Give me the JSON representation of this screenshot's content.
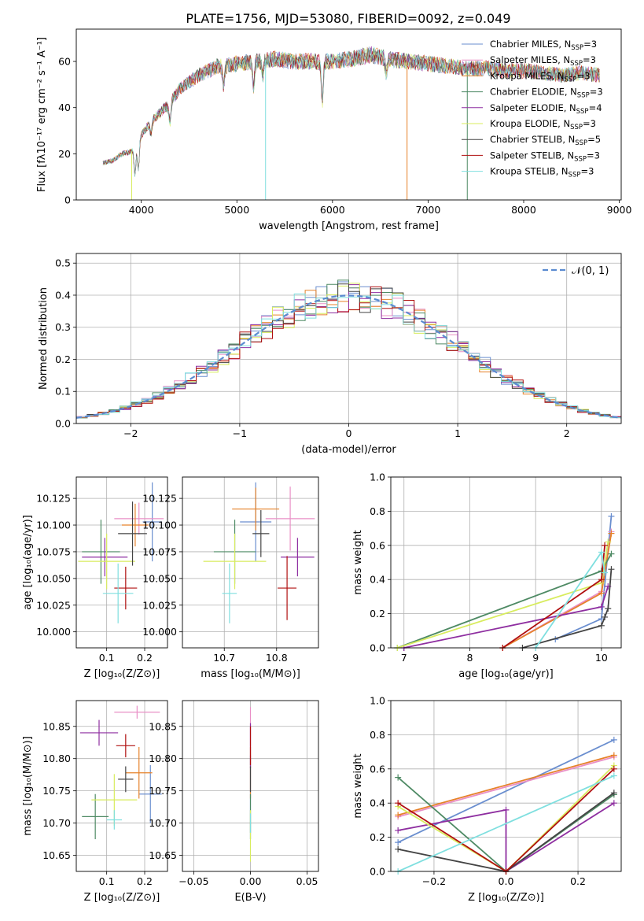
{
  "figure_title": "PLATE=1756, MJD=53080, FIBERID=0092, z=0.049",
  "legend_spectrum": [
    {
      "label": "Chabrier MILES, N",
      "sub": "SSP",
      "suffix": "=3",
      "color": "#6a8ecf"
    },
    {
      "label": "Salpeter MILES, N",
      "sub": "SSP",
      "suffix": "=3",
      "color": "#e98fc6"
    },
    {
      "label": "Kroupa MILES, N",
      "sub": "SSP",
      "suffix": "=3",
      "color": "#e6822a"
    },
    {
      "label": "Chabrier ELODIE, N",
      "sub": "SSP",
      "suffix": "=3",
      "color": "#4e8a64"
    },
    {
      "label": "Salpeter ELODIE, N",
      "sub": "SSP",
      "suffix": "=4",
      "color": "#8e2ea0"
    },
    {
      "label": "Kroupa ELODIE, N",
      "sub": "SSP",
      "suffix": "=3",
      "color": "#d8ec5e"
    },
    {
      "label": "Chabrier STELIB, N",
      "sub": "SSP",
      "suffix": "=5",
      "color": "#444444"
    },
    {
      "label": "Salpeter STELIB, N",
      "sub": "SSP",
      "suffix": "=3",
      "color": "#b01010"
    },
    {
      "label": "Kroupa STELIB, N",
      "sub": "SSP",
      "suffix": "=3",
      "color": "#7fdfdf"
    }
  ],
  "colors": [
    "#6a8ecf",
    "#e98fc6",
    "#e6822a",
    "#4e8a64",
    "#8e2ea0",
    "#d8ec5e",
    "#444444",
    "#b01010",
    "#7fdfdf"
  ],
  "chart_data": [
    {
      "id": "spectrum",
      "type": "line",
      "title": "PLATE=1756, MJD=53080, FIBERID=0092, z=0.049",
      "xlabel": "wavelength [Angstrom, rest frame]",
      "ylabel": "Flux [fλ10⁻¹⁷ erg cm⁻² s⁻¹ A⁻¹]",
      "xlim": [
        3320,
        9020
      ],
      "ylim": [
        0,
        74
      ],
      "xticks": [
        4000,
        5000,
        6000,
        7000,
        8000,
        9000
      ],
      "yticks": [
        0,
        20,
        40,
        60
      ],
      "xtick_labels": [
        "4000",
        "5000",
        "6000",
        "7000",
        "8000",
        "9000"
      ],
      "ytick_labels": [
        "0",
        "20",
        "40",
        "60"
      ],
      "continuum": {
        "x": [
          3600,
          3700,
          3800,
          3900,
          4000,
          4100,
          4200,
          4300,
          4400,
          4500,
          4600,
          4700,
          4800,
          4900,
          5000,
          5200,
          5400,
          5600,
          5800,
          6000,
          6200,
          6400,
          6600,
          6800,
          7000,
          7200,
          7400,
          7600,
          7800,
          8000,
          8200,
          8400,
          8600,
          8800
        ],
        "y": [
          16,
          17,
          20,
          21,
          28,
          34,
          38,
          42,
          48,
          51,
          54,
          56,
          58,
          58,
          59,
          60,
          61,
          60,
          60,
          60,
          61,
          63,
          61,
          60,
          59,
          58,
          57,
          57,
          56,
          56,
          55,
          54,
          55,
          54
        ]
      }
    },
    {
      "id": "residuals",
      "type": "histogram",
      "xlabel": "(data-model)/error",
      "ylabel": "Normed distribution",
      "xlim": [
        -2.5,
        2.5
      ],
      "ylim": [
        0,
        0.53
      ],
      "xticks": [
        -2,
        -1,
        0,
        1,
        2
      ],
      "yticks": [
        0.0,
        0.1,
        0.2,
        0.3,
        0.4,
        0.5
      ],
      "xtick_labels": [
        "−2",
        "−1",
        "0",
        "1",
        "2"
      ],
      "ytick_labels": [
        "0.0",
        "0.1",
        "0.2",
        "0.3",
        "0.4",
        "0.5"
      ],
      "legend": "𝒩(0, 1)",
      "bin_width": 0.1
    },
    {
      "id": "age-vs-metallicity",
      "type": "errorbar",
      "xlabel": "Z [log₁₀(Z/Z⊙)]",
      "ylabel": "age  [log₁₀(age/yr)]",
      "xlim": [
        0.02,
        0.26
      ],
      "ylim": [
        9.985,
        10.145
      ],
      "xticks": [
        0.1,
        0.2
      ],
      "yticks": [
        10.0,
        10.025,
        10.05,
        10.075,
        10.1,
        10.125
      ],
      "xtick_labels": [
        "0.1",
        "0.2"
      ],
      "ytick_labels": [
        "10.000",
        "10.025",
        "10.050",
        "10.075",
        "10.100",
        "10.125"
      ],
      "points": [
        {
          "x": 0.22,
          "xerr": 0.025,
          "y": 10.103,
          "yerr": 0.037
        },
        {
          "x": 0.185,
          "xerr": 0.065,
          "y": 10.106,
          "yerr": 0.015
        },
        {
          "x": 0.175,
          "xerr": 0.035,
          "y": 10.1,
          "yerr": 0.02
        },
        {
          "x": 0.085,
          "xerr": 0.05,
          "y": 10.075,
          "yerr": 0.03
        },
        {
          "x": 0.095,
          "xerr": 0.06,
          "y": 10.07,
          "yerr": 0.018
        },
        {
          "x": 0.1,
          "xerr": 0.075,
          "y": 10.066,
          "yerr": 0.026
        },
        {
          "x": 0.168,
          "xerr": 0.038,
          "y": 10.092,
          "yerr": 0.03
        },
        {
          "x": 0.15,
          "xerr": 0.03,
          "y": 10.041,
          "yerr": 0.02
        },
        {
          "x": 0.13,
          "xerr": 0.04,
          "y": 10.036,
          "yerr": 0.028
        }
      ]
    },
    {
      "id": "age-vs-mass",
      "type": "errorbar",
      "xlabel": "mass [log₁₀(M/M⊙)]",
      "ylabel": "",
      "xlim": [
        10.62,
        10.88
      ],
      "ylim": [
        9.985,
        10.145
      ],
      "xticks": [
        10.7,
        10.8
      ],
      "yticks": [
        10.0,
        10.025,
        10.05,
        10.075,
        10.1,
        10.125
      ],
      "xtick_labels": [
        "10.7",
        "10.8"
      ],
      "ytick_labels": [
        "10.000",
        "10.025",
        "10.050",
        "10.075",
        "10.100",
        "10.125"
      ],
      "points": [
        {
          "x": 10.76,
          "xerr": 0.03,
          "y": 10.103,
          "yerr": 0.037
        },
        {
          "x": 10.826,
          "xerr": 0.047,
          "y": 10.106,
          "yerr": 0.03
        },
        {
          "x": 10.76,
          "xerr": 0.045,
          "y": 10.115,
          "yerr": 0.02
        },
        {
          "x": 10.72,
          "xerr": 0.04,
          "y": 10.075,
          "yerr": 0.03
        },
        {
          "x": 10.84,
          "xerr": 0.032,
          "y": 10.07,
          "yerr": 0.018
        },
        {
          "x": 10.72,
          "xerr": 0.06,
          "y": 10.066,
          "yerr": 0.026
        },
        {
          "x": 10.77,
          "xerr": 0.016,
          "y": 10.092,
          "yerr": 0.022
        },
        {
          "x": 10.82,
          "xerr": 0.018,
          "y": 10.041,
          "yerr": 0.03
        },
        {
          "x": 10.71,
          "xerr": 0.014,
          "y": 10.036,
          "yerr": 0.028
        }
      ]
    },
    {
      "id": "mass-weight-vs-age",
      "type": "line",
      "xlabel": "age  [log₁₀(age/yr)]",
      "ylabel": "mass weight",
      "xlim": [
        6.8,
        10.3
      ],
      "ylim": [
        0.0,
        1.0
      ],
      "xticks": [
        7,
        8,
        9,
        10
      ],
      "yticks": [
        0.0,
        0.2,
        0.4,
        0.6,
        0.8,
        1.0
      ],
      "xtick_labels": [
        "7",
        "8",
        "9",
        "10"
      ],
      "ytick_labels": [
        "0.0",
        "0.2",
        "0.4",
        "0.6",
        "0.8",
        "1.0"
      ],
      "series": [
        {
          "x": [
            9.3,
            10.0,
            10.15
          ],
          "y": [
            0.05,
            0.17,
            0.77
          ]
        },
        {
          "x": [
            8.5,
            10.0,
            10.15
          ],
          "y": [
            0.0,
            0.33,
            0.68
          ]
        },
        {
          "x": [
            8.5,
            10.0,
            10.15
          ],
          "y": [
            0.0,
            0.32,
            0.67
          ]
        },
        {
          "x": [
            6.9,
            10.0,
            10.15
          ],
          "y": [
            0.0,
            0.45,
            0.55
          ]
        },
        {
          "x": [
            7.0,
            10.0,
            10.1
          ],
          "y": [
            0.0,
            0.24,
            0.36
          ]
        },
        {
          "x": [
            6.9,
            10.0,
            10.1
          ],
          "y": [
            0.0,
            0.38,
            0.62
          ]
        },
        {
          "x": [
            8.8,
            10.0,
            10.05,
            10.1,
            10.15
          ],
          "y": [
            0.0,
            0.13,
            0.18,
            0.23,
            0.46
          ]
        },
        {
          "x": [
            8.5,
            10.0,
            10.05
          ],
          "y": [
            0.0,
            0.4,
            0.6
          ]
        },
        {
          "x": [
            9.0,
            10.0,
            10.05
          ],
          "y": [
            0.0,
            0.56,
            0.44
          ]
        }
      ]
    },
    {
      "id": "mass-vs-metallicity",
      "type": "errorbar",
      "xlabel": "Z [log₁₀(Z/Z⊙)]",
      "ylabel": "mass [log₁₀(M/M⊙)]",
      "xlim": [
        0.02,
        0.26
      ],
      "ylim": [
        10.625,
        10.89
      ],
      "xticks": [
        0.1,
        0.2
      ],
      "yticks": [
        10.65,
        10.7,
        10.75,
        10.8,
        10.85
      ],
      "xtick_labels": [
        "0.1",
        "0.2"
      ],
      "ytick_labels": [
        "10.65",
        "10.70",
        "10.75",
        "10.80",
        "10.85"
      ],
      "points": [
        {
          "x": 0.215,
          "xerr": 0.03,
          "y": 10.745,
          "yerr": 0.045
        },
        {
          "x": 0.18,
          "xerr": 0.06,
          "y": 10.872,
          "yerr": 0.01
        },
        {
          "x": 0.185,
          "xerr": 0.035,
          "y": 10.778,
          "yerr": 0.04
        },
        {
          "x": 0.07,
          "xerr": 0.035,
          "y": 10.71,
          "yerr": 0.035
        },
        {
          "x": 0.08,
          "xerr": 0.05,
          "y": 10.84,
          "yerr": 0.02
        },
        {
          "x": 0.12,
          "xerr": 0.06,
          "y": 10.736,
          "yerr": 0.04
        },
        {
          "x": 0.15,
          "xerr": 0.02,
          "y": 10.768,
          "yerr": 0.02
        },
        {
          "x": 0.15,
          "xerr": 0.025,
          "y": 10.82,
          "yerr": 0.018
        },
        {
          "x": 0.12,
          "xerr": 0.02,
          "y": 10.705,
          "yerr": 0.015
        }
      ]
    },
    {
      "id": "mass-vs-extinction",
      "type": "errorbar",
      "xlabel": "E(B-V)",
      "ylabel": "",
      "xlim": [
        -0.06,
        0.06
      ],
      "ylim": [
        10.625,
        10.89
      ],
      "xticks": [
        -0.05,
        0.0,
        0.05
      ],
      "yticks": [
        10.65,
        10.7,
        10.75,
        10.8,
        10.85
      ],
      "xtick_labels": [
        "−0.05",
        "0.00",
        "0.05"
      ],
      "ytick_labels": [
        "10.65",
        "10.70",
        "10.75",
        "10.80",
        "10.85"
      ],
      "points": [
        {
          "x": 0.0,
          "xerr": 0.0,
          "y": 10.745,
          "yerr": 0.06
        },
        {
          "x": 0.0,
          "xerr": 0.0,
          "y": 10.85,
          "yerr": 0.03
        },
        {
          "x": 0.0,
          "xerr": 0.0,
          "y": 10.778,
          "yerr": 0.04
        },
        {
          "x": 0.0,
          "xerr": 0.0,
          "y": 10.71,
          "yerr": 0.035
        },
        {
          "x": 0.0,
          "xerr": 0.0,
          "y": 10.82,
          "yerr": 0.035
        },
        {
          "x": 0.0,
          "xerr": 0.0,
          "y": 10.68,
          "yerr": 0.04
        },
        {
          "x": 0.0,
          "xerr": 0.0,
          "y": 10.768,
          "yerr": 0.02
        },
        {
          "x": 0.0,
          "xerr": 0.0,
          "y": 10.82,
          "yerr": 0.03
        },
        {
          "x": 0.0,
          "xerr": 0.0,
          "y": 10.7,
          "yerr": 0.015
        }
      ]
    },
    {
      "id": "mass-weight-vs-metallicity",
      "type": "line",
      "xlabel": "Z [log₁₀(Z/Z⊙)]",
      "ylabel": "mass weight",
      "xlim": [
        -0.32,
        0.32
      ],
      "ylim": [
        0.0,
        1.0
      ],
      "xticks": [
        -0.2,
        0.0,
        0.2
      ],
      "yticks": [
        0.0,
        0.2,
        0.4,
        0.6,
        0.8,
        1.0
      ],
      "xtick_labels": [
        "−0.2",
        "0.0",
        "0.2"
      ],
      "ytick_labels": [
        "0.0",
        "0.2",
        "0.4",
        "0.6",
        "0.8",
        "1.0"
      ],
      "series": [
        {
          "x": [
            -0.3,
            0.3
          ],
          "y": [
            0.17,
            0.77
          ]
        },
        {
          "x": [
            -0.3,
            0.3
          ],
          "y": [
            0.32,
            0.67
          ]
        },
        {
          "x": [
            -0.3,
            0.3
          ],
          "y": [
            0.33,
            0.68
          ]
        },
        {
          "x": [
            -0.3,
            0.0,
            0.3
          ],
          "y": [
            0.55,
            0.0,
            0.45
          ]
        },
        {
          "x": [
            -0.3,
            0.0,
            0.0,
            0.3
          ],
          "y": [
            0.24,
            0.36,
            0.0,
            0.4
          ]
        },
        {
          "x": [
            -0.3,
            0.0,
            0.3
          ],
          "y": [
            0.38,
            0.0,
            0.62
          ]
        },
        {
          "x": [
            -0.3,
            0.0,
            0.3
          ],
          "y": [
            0.13,
            0.0,
            0.46
          ]
        },
        {
          "x": [
            -0.3,
            0.0,
            0.3
          ],
          "y": [
            0.4,
            0.0,
            0.6
          ]
        },
        {
          "x": [
            -0.3,
            0.3
          ],
          "y": [
            0.0,
            0.56
          ]
        }
      ]
    }
  ]
}
